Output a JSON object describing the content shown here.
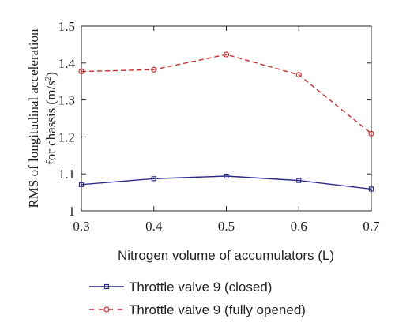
{
  "chart_data": {
    "type": "line",
    "xlabel": "Nitrogen volume of accumulators (L)",
    "ylabel_line1": "RMS of longitudinal acceleration",
    "ylabel_line2": "for chassis (m/s",
    "ylabel_sup": "2",
    "ylabel_close": ")",
    "xlim": [
      0.3,
      0.7
    ],
    "ylim": [
      1.0,
      1.5
    ],
    "xticks": [
      "0.3",
      "0.4",
      "0.5",
      "0.6",
      "0.7"
    ],
    "yticks": [
      "1",
      "1.1",
      "1.2",
      "1.3",
      "1.4",
      "1.5"
    ],
    "x": [
      0.3,
      0.4,
      0.5,
      0.6,
      0.7
    ],
    "series": [
      {
        "name": "Throttle valve 9 (closed)",
        "values": [
          1.071,
          1.087,
          1.094,
          1.082,
          1.059
        ],
        "color": "#2b2b8c",
        "marker": "square",
        "dash": "solid"
      },
      {
        "name": "Throttle valve 9 (fully opened)",
        "values": [
          1.377,
          1.382,
          1.423,
          1.368,
          1.209
        ],
        "color": "#d42a2a",
        "marker": "circle",
        "dash": "dashed"
      }
    ],
    "grid": false,
    "legend_position": "bottom"
  }
}
